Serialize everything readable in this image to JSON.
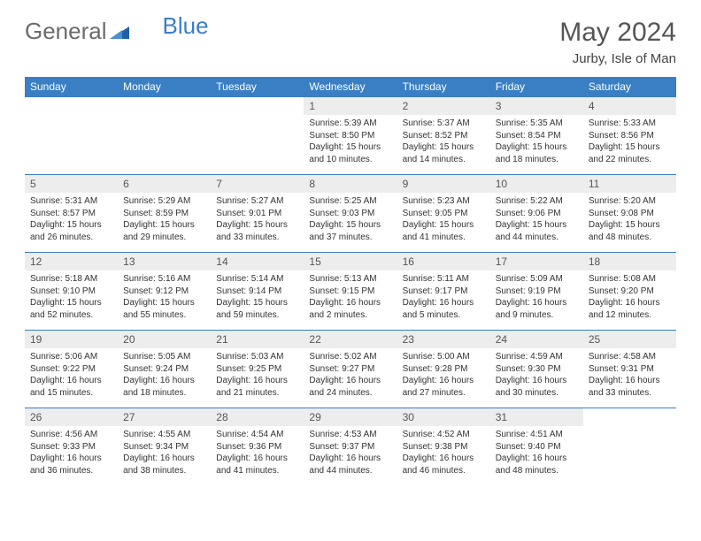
{
  "brand": {
    "part1": "General",
    "part2": "Blue"
  },
  "title": "May 2024",
  "location": "Jurby, Isle of Man",
  "colors": {
    "header_bg": "#3a7fc4",
    "header_text": "#ffffff",
    "daynum_bg": "#ededed",
    "border": "#3a7fc4",
    "title_color": "#555555",
    "body_text": "#333333"
  },
  "daysOfWeek": [
    "Sunday",
    "Monday",
    "Tuesday",
    "Wednesday",
    "Thursday",
    "Friday",
    "Saturday"
  ],
  "weeks": [
    [
      {
        "empty": true
      },
      {
        "empty": true
      },
      {
        "empty": true
      },
      {
        "num": "1",
        "sunrise": "Sunrise: 5:39 AM",
        "sunset": "Sunset: 8:50 PM",
        "day1": "Daylight: 15 hours",
        "day2": "and 10 minutes."
      },
      {
        "num": "2",
        "sunrise": "Sunrise: 5:37 AM",
        "sunset": "Sunset: 8:52 PM",
        "day1": "Daylight: 15 hours",
        "day2": "and 14 minutes."
      },
      {
        "num": "3",
        "sunrise": "Sunrise: 5:35 AM",
        "sunset": "Sunset: 8:54 PM",
        "day1": "Daylight: 15 hours",
        "day2": "and 18 minutes."
      },
      {
        "num": "4",
        "sunrise": "Sunrise: 5:33 AM",
        "sunset": "Sunset: 8:56 PM",
        "day1": "Daylight: 15 hours",
        "day2": "and 22 minutes."
      }
    ],
    [
      {
        "num": "5",
        "sunrise": "Sunrise: 5:31 AM",
        "sunset": "Sunset: 8:57 PM",
        "day1": "Daylight: 15 hours",
        "day2": "and 26 minutes."
      },
      {
        "num": "6",
        "sunrise": "Sunrise: 5:29 AM",
        "sunset": "Sunset: 8:59 PM",
        "day1": "Daylight: 15 hours",
        "day2": "and 29 minutes."
      },
      {
        "num": "7",
        "sunrise": "Sunrise: 5:27 AM",
        "sunset": "Sunset: 9:01 PM",
        "day1": "Daylight: 15 hours",
        "day2": "and 33 minutes."
      },
      {
        "num": "8",
        "sunrise": "Sunrise: 5:25 AM",
        "sunset": "Sunset: 9:03 PM",
        "day1": "Daylight: 15 hours",
        "day2": "and 37 minutes."
      },
      {
        "num": "9",
        "sunrise": "Sunrise: 5:23 AM",
        "sunset": "Sunset: 9:05 PM",
        "day1": "Daylight: 15 hours",
        "day2": "and 41 minutes."
      },
      {
        "num": "10",
        "sunrise": "Sunrise: 5:22 AM",
        "sunset": "Sunset: 9:06 PM",
        "day1": "Daylight: 15 hours",
        "day2": "and 44 minutes."
      },
      {
        "num": "11",
        "sunrise": "Sunrise: 5:20 AM",
        "sunset": "Sunset: 9:08 PM",
        "day1": "Daylight: 15 hours",
        "day2": "and 48 minutes."
      }
    ],
    [
      {
        "num": "12",
        "sunrise": "Sunrise: 5:18 AM",
        "sunset": "Sunset: 9:10 PM",
        "day1": "Daylight: 15 hours",
        "day2": "and 52 minutes."
      },
      {
        "num": "13",
        "sunrise": "Sunrise: 5:16 AM",
        "sunset": "Sunset: 9:12 PM",
        "day1": "Daylight: 15 hours",
        "day2": "and 55 minutes."
      },
      {
        "num": "14",
        "sunrise": "Sunrise: 5:14 AM",
        "sunset": "Sunset: 9:14 PM",
        "day1": "Daylight: 15 hours",
        "day2": "and 59 minutes."
      },
      {
        "num": "15",
        "sunrise": "Sunrise: 5:13 AM",
        "sunset": "Sunset: 9:15 PM",
        "day1": "Daylight: 16 hours",
        "day2": "and 2 minutes."
      },
      {
        "num": "16",
        "sunrise": "Sunrise: 5:11 AM",
        "sunset": "Sunset: 9:17 PM",
        "day1": "Daylight: 16 hours",
        "day2": "and 5 minutes."
      },
      {
        "num": "17",
        "sunrise": "Sunrise: 5:09 AM",
        "sunset": "Sunset: 9:19 PM",
        "day1": "Daylight: 16 hours",
        "day2": "and 9 minutes."
      },
      {
        "num": "18",
        "sunrise": "Sunrise: 5:08 AM",
        "sunset": "Sunset: 9:20 PM",
        "day1": "Daylight: 16 hours",
        "day2": "and 12 minutes."
      }
    ],
    [
      {
        "num": "19",
        "sunrise": "Sunrise: 5:06 AM",
        "sunset": "Sunset: 9:22 PM",
        "day1": "Daylight: 16 hours",
        "day2": "and 15 minutes."
      },
      {
        "num": "20",
        "sunrise": "Sunrise: 5:05 AM",
        "sunset": "Sunset: 9:24 PM",
        "day1": "Daylight: 16 hours",
        "day2": "and 18 minutes."
      },
      {
        "num": "21",
        "sunrise": "Sunrise: 5:03 AM",
        "sunset": "Sunset: 9:25 PM",
        "day1": "Daylight: 16 hours",
        "day2": "and 21 minutes."
      },
      {
        "num": "22",
        "sunrise": "Sunrise: 5:02 AM",
        "sunset": "Sunset: 9:27 PM",
        "day1": "Daylight: 16 hours",
        "day2": "and 24 minutes."
      },
      {
        "num": "23",
        "sunrise": "Sunrise: 5:00 AM",
        "sunset": "Sunset: 9:28 PM",
        "day1": "Daylight: 16 hours",
        "day2": "and 27 minutes."
      },
      {
        "num": "24",
        "sunrise": "Sunrise: 4:59 AM",
        "sunset": "Sunset: 9:30 PM",
        "day1": "Daylight: 16 hours",
        "day2": "and 30 minutes."
      },
      {
        "num": "25",
        "sunrise": "Sunrise: 4:58 AM",
        "sunset": "Sunset: 9:31 PM",
        "day1": "Daylight: 16 hours",
        "day2": "and 33 minutes."
      }
    ],
    [
      {
        "num": "26",
        "sunrise": "Sunrise: 4:56 AM",
        "sunset": "Sunset: 9:33 PM",
        "day1": "Daylight: 16 hours",
        "day2": "and 36 minutes."
      },
      {
        "num": "27",
        "sunrise": "Sunrise: 4:55 AM",
        "sunset": "Sunset: 9:34 PM",
        "day1": "Daylight: 16 hours",
        "day2": "and 38 minutes."
      },
      {
        "num": "28",
        "sunrise": "Sunrise: 4:54 AM",
        "sunset": "Sunset: 9:36 PM",
        "day1": "Daylight: 16 hours",
        "day2": "and 41 minutes."
      },
      {
        "num": "29",
        "sunrise": "Sunrise: 4:53 AM",
        "sunset": "Sunset: 9:37 PM",
        "day1": "Daylight: 16 hours",
        "day2": "and 44 minutes."
      },
      {
        "num": "30",
        "sunrise": "Sunrise: 4:52 AM",
        "sunset": "Sunset: 9:38 PM",
        "day1": "Daylight: 16 hours",
        "day2": "and 46 minutes."
      },
      {
        "num": "31",
        "sunrise": "Sunrise: 4:51 AM",
        "sunset": "Sunset: 9:40 PM",
        "day1": "Daylight: 16 hours",
        "day2": "and 48 minutes."
      },
      {
        "empty": true
      }
    ]
  ]
}
